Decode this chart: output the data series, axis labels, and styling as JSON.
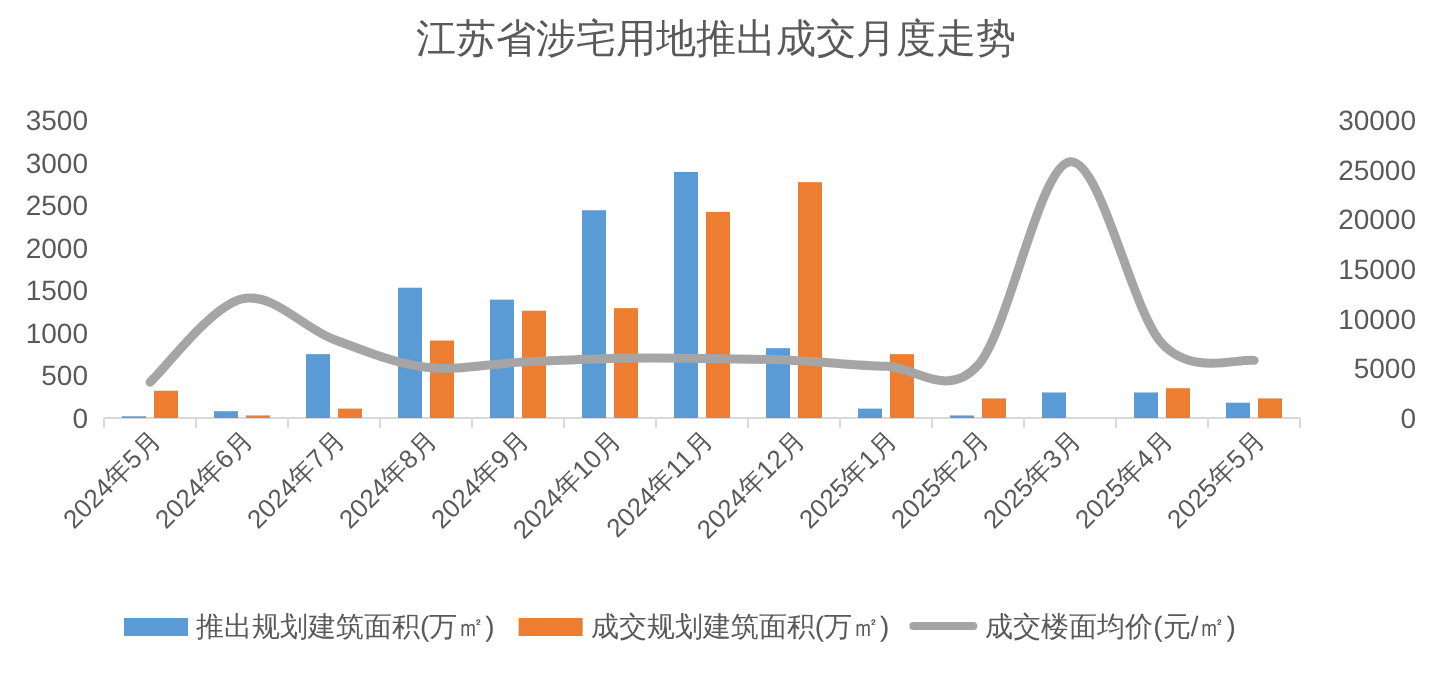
{
  "chart_data": {
    "type": "bar",
    "title": "江苏省涉宅用地推出成交月度走势",
    "categories": [
      "2024年5月",
      "2024年6月",
      "2024年7月",
      "2024年8月",
      "2024年9月",
      "2024年10月",
      "2024年11月",
      "2024年12月",
      "2025年1月",
      "2025年2月",
      "2025年3月",
      "2025年4月",
      "2025年5月"
    ],
    "series": [
      {
        "name": "推出规划建筑面积(万㎡)",
        "color": "#5b9bd5",
        "values": [
          20,
          80,
          750,
          1530,
          1390,
          2440,
          2890,
          820,
          110,
          30,
          300,
          300,
          180
        ]
      },
      {
        "name": "成交规划建筑面积(万㎡)",
        "color": "#ed7d31",
        "values": [
          320,
          30,
          110,
          910,
          1260,
          1290,
          2420,
          2770,
          750,
          230,
          null,
          350,
          230
        ]
      },
      {
        "name": "成交楼面均价(元/㎡)",
        "color": "#a5a5a5",
        "type": "line",
        "axis": "y2",
        "values": [
          3600,
          12000,
          7900,
          5100,
          5600,
          6000,
          6000,
          5800,
          5200,
          5300,
          25800,
          7500,
          5800
        ]
      }
    ],
    "ylim": [
      0,
      3500
    ],
    "yticks": [
      0,
      500,
      1000,
      1500,
      2000,
      2500,
      3000,
      3500
    ],
    "y2lim": [
      0,
      30000
    ],
    "y2ticks": [
      0,
      5000,
      10000,
      15000,
      20000,
      25000,
      30000
    ],
    "grid": false,
    "legend": "bottom",
    "marker": "none"
  }
}
